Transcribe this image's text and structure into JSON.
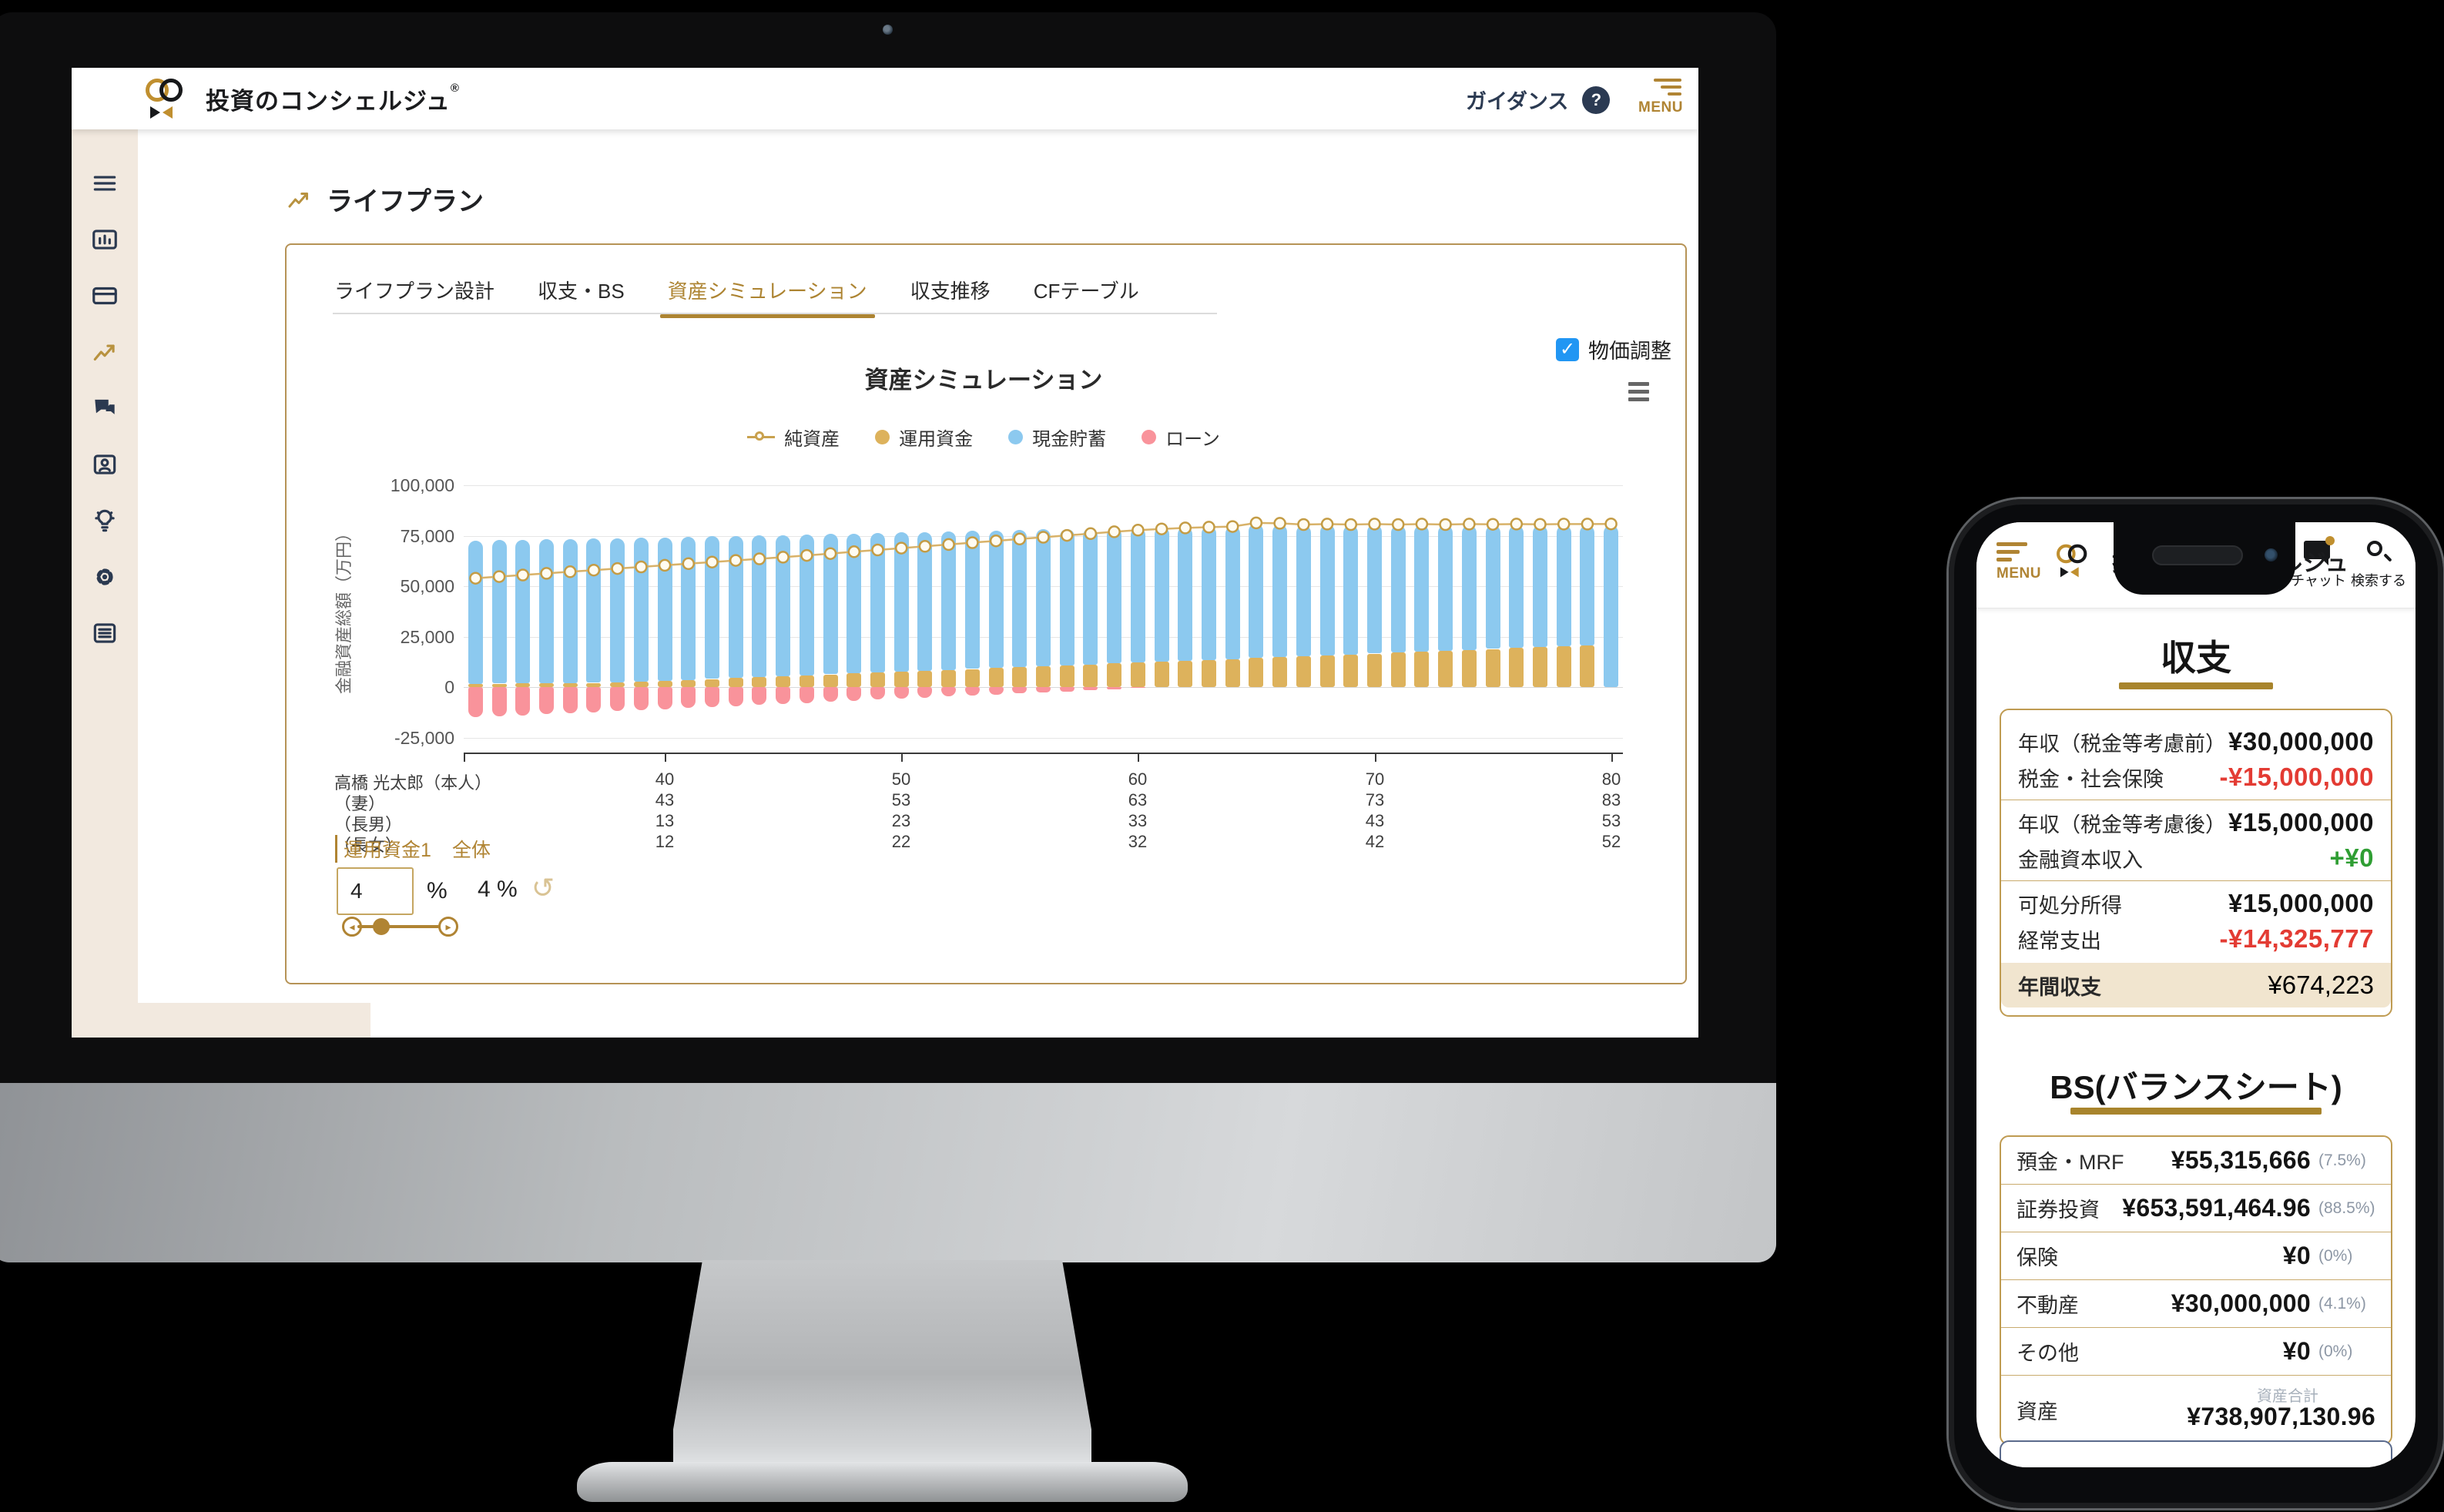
{
  "desktop": {
    "header": {
      "brand": "投資のコンシェルジュ",
      "brand_reg": "®",
      "guidance_label": "ガイダンス",
      "help_glyph": "?",
      "menu_label": "MENU"
    },
    "sidebar": {
      "items": [
        {
          "icon": "menu-icon",
          "active": false
        },
        {
          "icon": "dashboard-icon",
          "active": false
        },
        {
          "icon": "card-icon",
          "active": false
        },
        {
          "icon": "lifeplan-trend-icon",
          "active": true
        },
        {
          "icon": "chat-icon",
          "active": false
        },
        {
          "icon": "profile-card-icon",
          "active": false
        },
        {
          "icon": "idea-bulb-icon",
          "active": false
        },
        {
          "icon": "settings-gear-icon",
          "active": false
        },
        {
          "icon": "news-icon",
          "active": false
        }
      ],
      "active_color": "#b8923f",
      "idle_color": "#2b3950"
    },
    "page_title": "ライフプラン",
    "tabs": [
      {
        "label": "ライフプラン設計",
        "active": false
      },
      {
        "label": "収支・BS",
        "active": false
      },
      {
        "label": "資産シミュレーション",
        "active": true
      },
      {
        "label": "収支推移",
        "active": false
      },
      {
        "label": "CFテーブル",
        "active": false
      }
    ],
    "price_adjust": {
      "label": "物価調整",
      "checked": true,
      "check_glyph": "✓"
    },
    "controls": {
      "fund_label": "運用資金1",
      "overall_label": "全体",
      "fund_rate_value": "4",
      "fund_rate_unit": "%",
      "overall_rate": "4 %",
      "undo_glyph": "↺",
      "slider_left_glyph": "◂",
      "slider_right_glyph": "▸"
    }
  },
  "chart_data": {
    "type": "bar",
    "subtype": "stacked-bars-with-line",
    "title": "資産シミュレーション",
    "ylabel": "金融資産総額（万円）",
    "ylim": [
      -25000,
      100000
    ],
    "yticks": [
      100000,
      75000,
      50000,
      25000,
      0,
      -25000
    ],
    "grid": true,
    "legend_position": "top-center",
    "x_age_start": 32,
    "x_age_end": 80,
    "x_tick_ages": [
      40,
      50,
      60,
      70,
      80
    ],
    "legend": [
      {
        "name": "純資産",
        "type": "line",
        "color": "#C9A14E"
      },
      {
        "name": "運用資金",
        "type": "bar",
        "color": "#DDB25C"
      },
      {
        "name": "現金貯蓄",
        "type": "bar",
        "color": "#8CC9EF"
      },
      {
        "name": "ローン",
        "type": "bar",
        "color": "#F9939B"
      }
    ],
    "series": [
      {
        "name": "運用資金",
        "role": "bar-bottom-positive",
        "values": [
          1700,
          1800,
          1900,
          2000,
          2100,
          2200,
          2300,
          2750,
          3200,
          3650,
          4100,
          4550,
          5000,
          5450,
          5900,
          6350,
          6800,
          7250,
          7700,
          8150,
          8600,
          9050,
          9500,
          9950,
          10400,
          10850,
          11300,
          11750,
          12200,
          12650,
          13100,
          13550,
          14000,
          14450,
          14900,
          15350,
          15800,
          16250,
          16700,
          17150,
          17600,
          18050,
          18500,
          18950,
          19400,
          19850,
          20300,
          20750,
          0
        ]
      },
      {
        "name": "現金貯蓄",
        "role": "bar-stacked-above",
        "values": [
          70900,
          71000,
          71100,
          71200,
          71300,
          71400,
          71500,
          71250,
          71000,
          70800,
          70600,
          70400,
          70200,
          70000,
          69800,
          69600,
          69400,
          69200,
          69000,
          68800,
          68600,
          68400,
          68200,
          68000,
          67800,
          67600,
          67400,
          67200,
          67000,
          66750,
          66500,
          66250,
          66000,
          66450,
          65800,
          64950,
          64700,
          64050,
          63800,
          63150,
          62800,
          62250,
          61900,
          61350,
          61000,
          60450,
          60100,
          59650,
          80200
        ]
      },
      {
        "name": "ローン",
        "role": "bar-negative",
        "values": [
          -15000,
          -14500,
          -14000,
          -13400,
          -12900,
          -12400,
          -11900,
          -11400,
          -10900,
          -10300,
          -9800,
          -9300,
          -8800,
          -8300,
          -7800,
          -7200,
          -6700,
          -6200,
          -5700,
          -5200,
          -4700,
          -4100,
          -3600,
          -3100,
          -2600,
          -2100,
          -1600,
          -1000,
          -500,
          0,
          0,
          0,
          0,
          0,
          0,
          0,
          0,
          0,
          0,
          0,
          0,
          0,
          0,
          0,
          0,
          0,
          0,
          0,
          0
        ]
      },
      {
        "name": "純資産",
        "role": "line",
        "values": [
          54000,
          54800,
          55600,
          56400,
          57200,
          58000,
          58800,
          59600,
          60400,
          61200,
          62000,
          62800,
          63600,
          64400,
          65300,
          66200,
          67100,
          68000,
          68900,
          69800,
          70700,
          71600,
          72500,
          73400,
          74300,
          75200,
          76100,
          77000,
          77800,
          78400,
          78900,
          79300,
          79600,
          81400,
          81200,
          80600,
          80800,
          80600,
          80800,
          80600,
          80800,
          80600,
          80800,
          80700,
          80800,
          80700,
          80800,
          80800,
          80900
        ]
      }
    ]
  },
  "family_rows": [
    {
      "label": "高橋 光太郎（本人）",
      "values": [
        "40",
        "50",
        "60",
        "70",
        "80"
      ]
    },
    {
      "label": "（妻）",
      "values": [
        "43",
        "53",
        "63",
        "73",
        "83"
      ]
    },
    {
      "label": "（長男）",
      "values": [
        "13",
        "23",
        "33",
        "43",
        "53"
      ]
    },
    {
      "label": "（長女）",
      "values": [
        "12",
        "22",
        "32",
        "42",
        "52"
      ]
    }
  ],
  "phone": {
    "header": {
      "menu_label": "MENU",
      "brand": "投資のコンシェルジュ",
      "chat_label": "チャット",
      "search_label": "検索する"
    },
    "income": {
      "title": "収支",
      "groups": [
        [
          {
            "label": "年収（税金等考慮前）",
            "value": "¥30,000,000",
            "tone": "normal"
          },
          {
            "label": "税金・社会保険",
            "value": "-¥15,000,000",
            "tone": "negative"
          }
        ],
        [
          {
            "label": "年収（税金等考慮後）",
            "value": "¥15,000,000",
            "tone": "normal"
          },
          {
            "label": "金融資本収入",
            "value": "+¥0",
            "tone": "positive"
          }
        ],
        [
          {
            "label": "可処分所得",
            "value": "¥15,000,000",
            "tone": "normal"
          },
          {
            "label": "経常支出",
            "value": "-¥14,325,777",
            "tone": "negative"
          }
        ]
      ],
      "footer": {
        "label": "年間収支",
        "value": "¥674,223",
        "tone": "gold"
      }
    },
    "bs": {
      "title": "BS(バランスシート)",
      "rows": [
        {
          "label": "預金・MRF",
          "value": "¥55,315,666",
          "pct": "(7.5%)"
        },
        {
          "label": "証券投資",
          "value": "¥653,591,464.96",
          "pct": "(88.5%)"
        },
        {
          "label": "保険",
          "value": "¥0",
          "pct": "(0%)"
        },
        {
          "label": "不動産",
          "value": "¥30,000,000",
          "pct": "(4.1%)"
        },
        {
          "label": "その他",
          "value": "¥0",
          "pct": "(0%)"
        }
      ],
      "total_row": {
        "label": "資産",
        "sub_label": "資産合計",
        "value": "¥738,907,130.96"
      }
    }
  }
}
